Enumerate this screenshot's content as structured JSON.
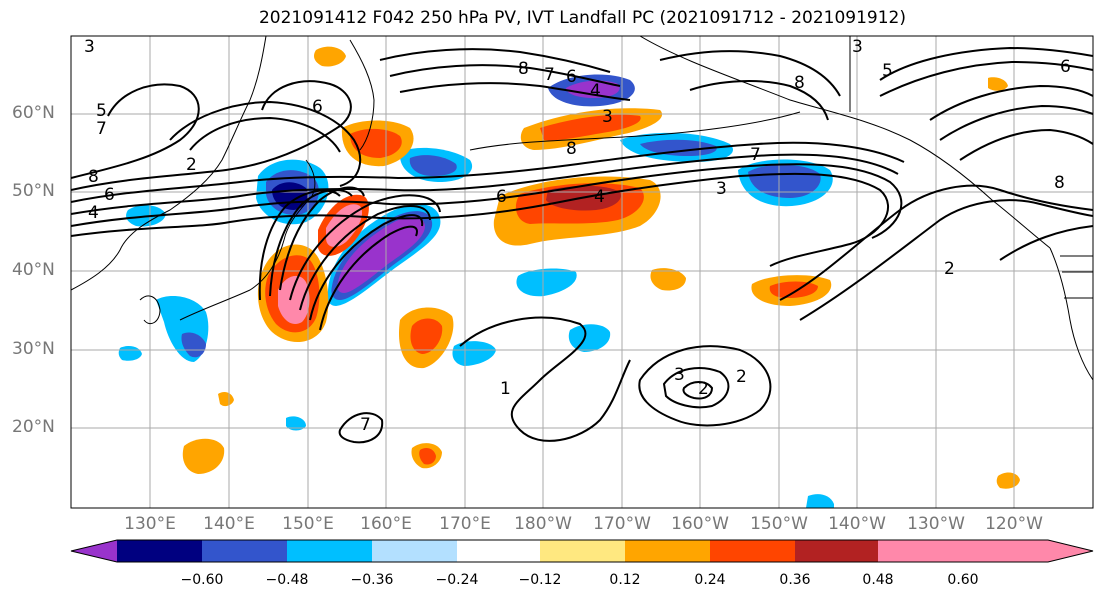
{
  "title": "2021091412 F042 250 hPa PV, IVT Landfall PC (2021091712 - 2021091912)",
  "lat_labels": [
    "60°N",
    "50°N",
    "40°N",
    "30°N",
    "20°N"
  ],
  "lon_labels": [
    "130°E",
    "140°E",
    "150°E",
    "160°E",
    "170°E",
    "180°W",
    "170°W",
    "160°W",
    "150°W",
    "140°W",
    "130°W",
    "120°W"
  ],
  "colorbar": {
    "ticks": [
      "−0.60",
      "−0.48",
      "−0.36",
      "−0.24",
      "−0.12",
      "0.12",
      "0.24",
      "0.36",
      "0.48",
      "0.60"
    ],
    "colors": [
      "#9933cc",
      "#000080",
      "#3355cc",
      "#00bfff",
      "#b3e0ff",
      "#ffffff",
      "#ffe880",
      "#ffa500",
      "#ff4500",
      "#b22222",
      "#ff88aa"
    ]
  },
  "contour_labels": [
    "3",
    "5",
    "7",
    "8",
    "6",
    "4",
    "2",
    "6",
    "8",
    "7",
    "4",
    "6",
    "3",
    "8",
    "6",
    "3",
    "4",
    "8",
    "7",
    "3",
    "5",
    "2",
    "2",
    "3",
    "2",
    "1",
    "7",
    "8",
    "6"
  ]
}
